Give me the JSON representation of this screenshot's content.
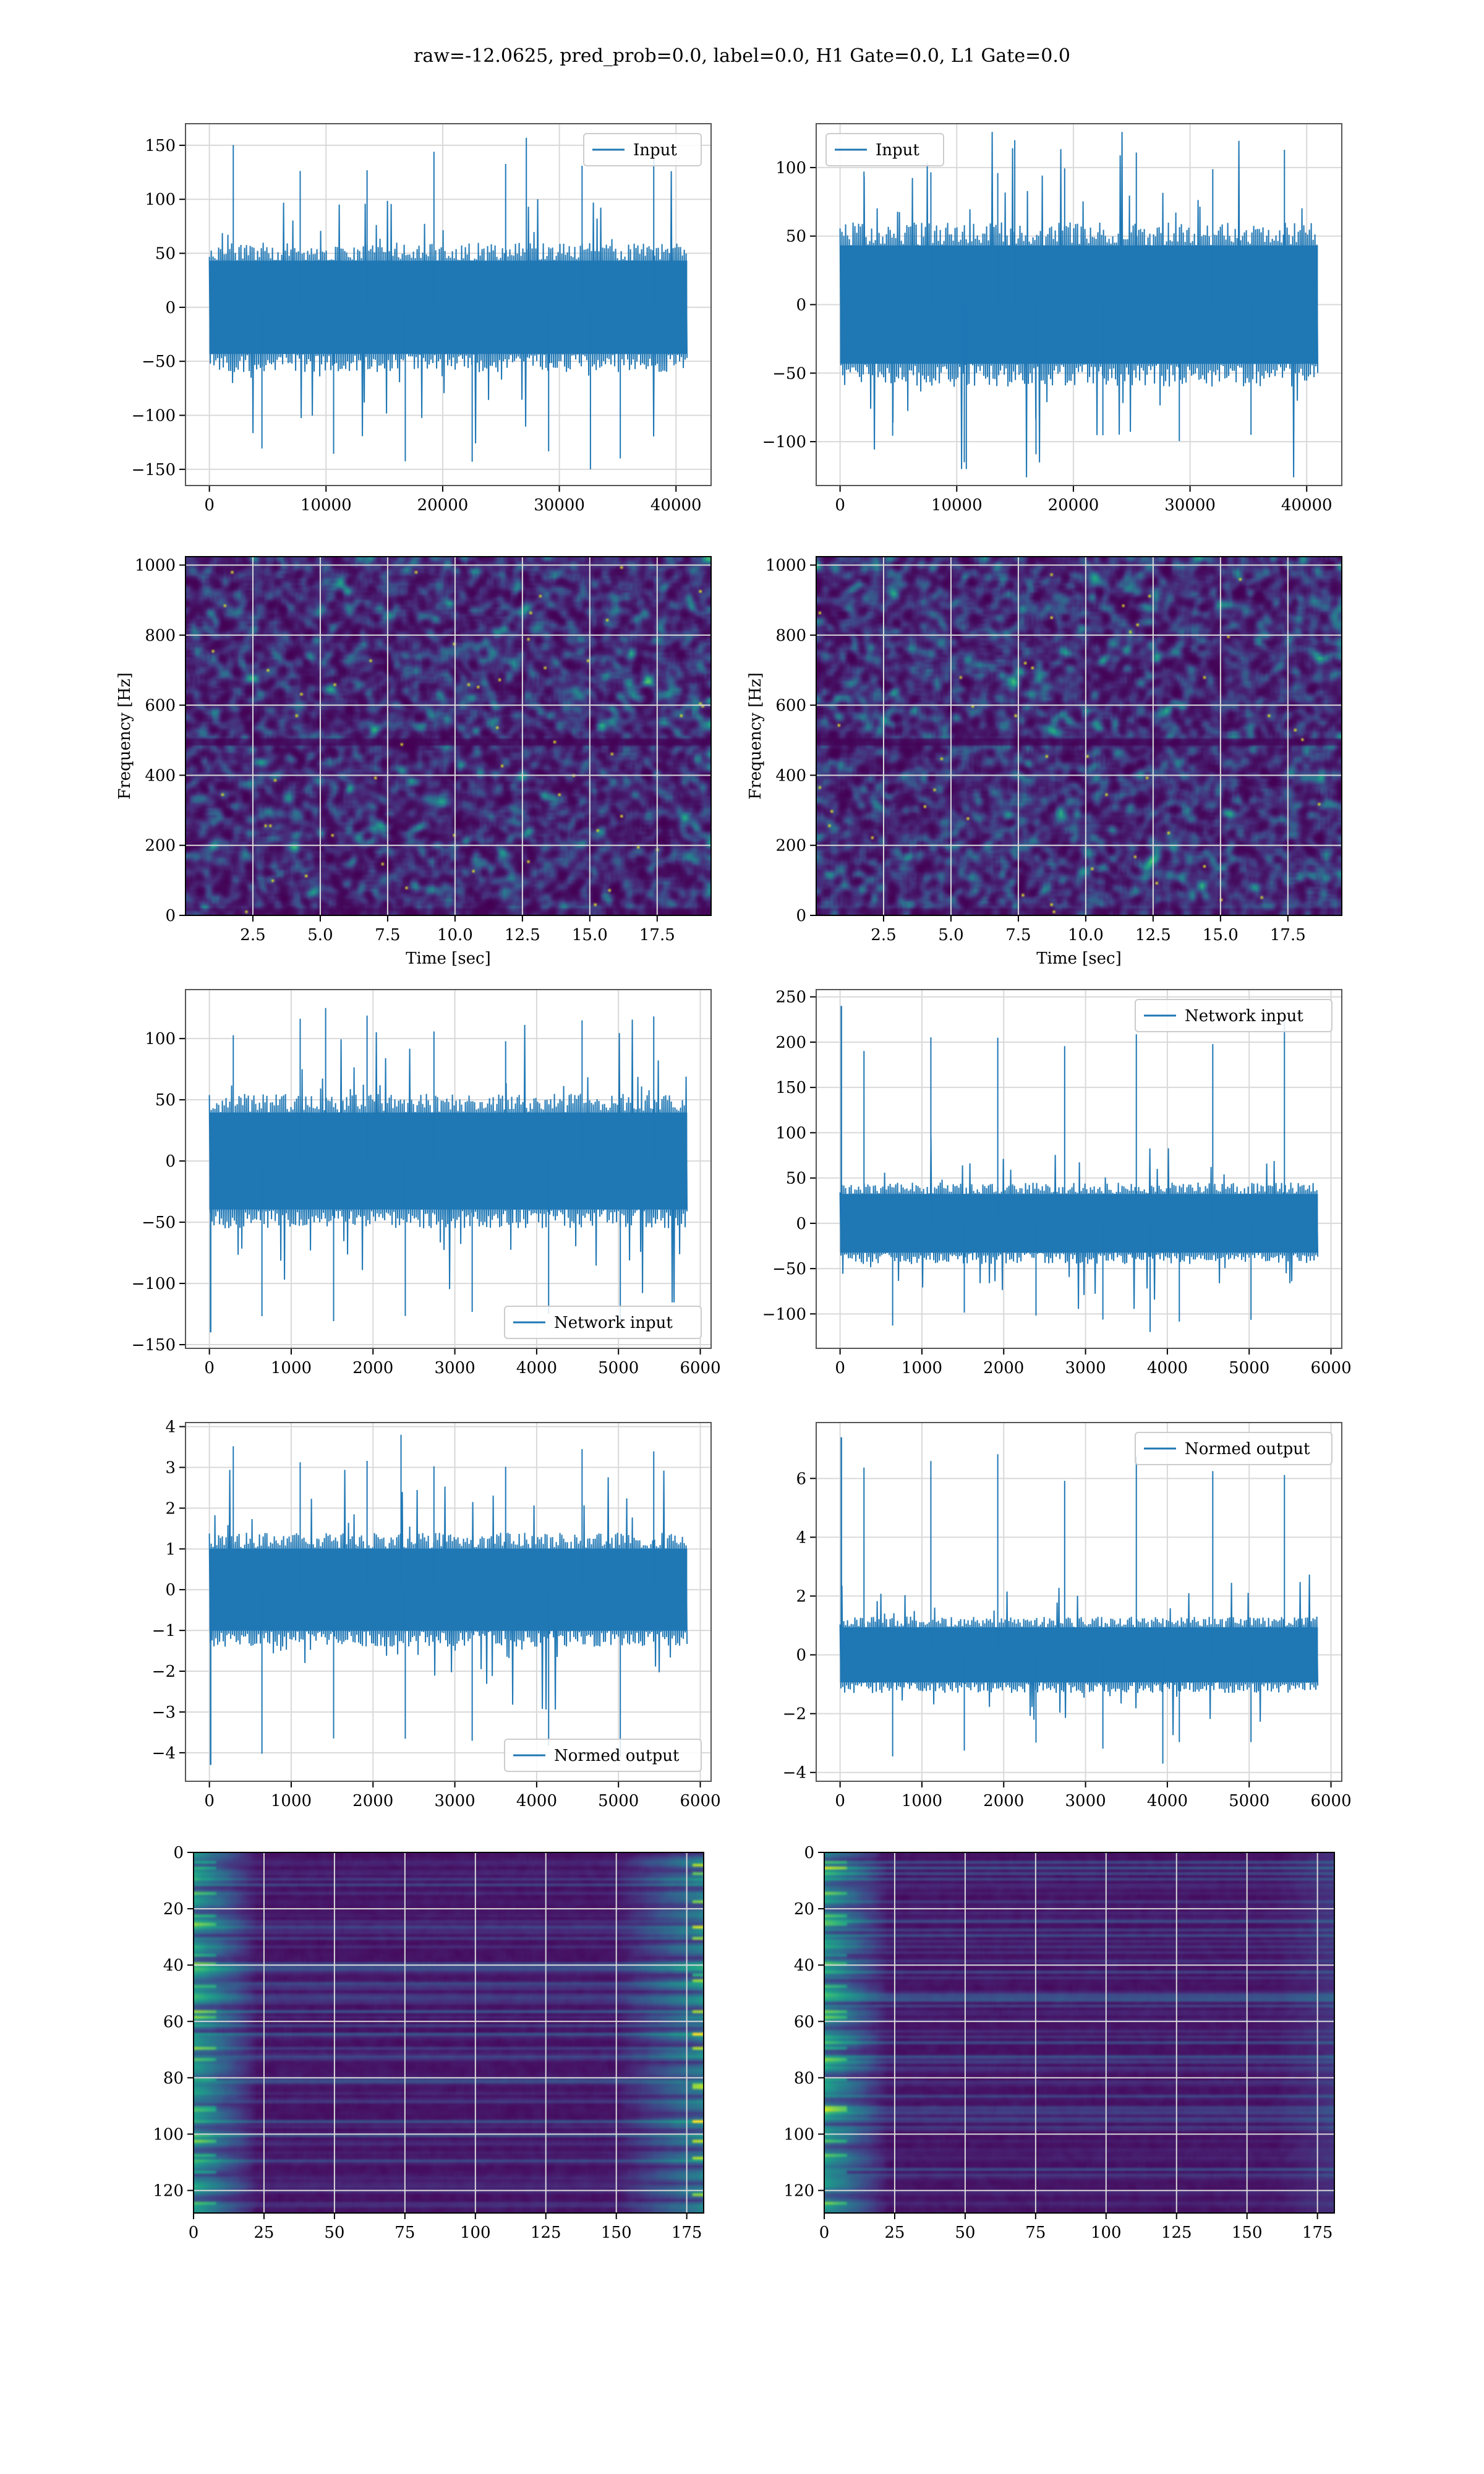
{
  "figure": {
    "title": "raw=-12.0625, pred_prob=0.0, label=0.0, H1 Gate=0.0, L1 Gate=0.0"
  },
  "colors": {
    "line": "#1f77b4",
    "grid": "#d9d9d9",
    "viridis_dark": "#440154",
    "viridis_mid": "#21918c",
    "viridis_bright": "#fde725"
  },
  "chart_data": [
    {
      "id": "input-h1",
      "type": "line",
      "series": [
        {
          "name": "Input"
        }
      ],
      "legend": "top-right",
      "x_range": [
        0,
        40960
      ],
      "y_envelope": [
        -60,
        60
      ],
      "y_extremes": [
        -150,
        157
      ],
      "xlim": [
        -2048,
        43008
      ],
      "ylim": [
        -165,
        170
      ],
      "xticks": [
        0,
        10000,
        20000,
        30000,
        40000
      ],
      "yticks": [
        -150,
        -100,
        -50,
        0,
        50,
        100,
        150
      ],
      "grid": true
    },
    {
      "id": "input-l1",
      "type": "line",
      "series": [
        {
          "name": "Input"
        }
      ],
      "legend": "top-left",
      "x_range": [
        0,
        40960
      ],
      "y_envelope": [
        -60,
        60
      ],
      "y_extremes": [
        -120,
        120
      ],
      "xlim": [
        -2048,
        43008
      ],
      "ylim": [
        -132,
        132
      ],
      "xticks": [
        0,
        10000,
        20000,
        30000,
        40000
      ],
      "yticks": [
        -100,
        -50,
        0,
        50,
        100
      ],
      "grid": true
    },
    {
      "id": "spectrogram-h1",
      "type": "heatmap",
      "xlabel": "Time [sec]",
      "ylabel": "Frequency [Hz]",
      "xlim": [
        0,
        19.5
      ],
      "ylim": [
        0,
        1024
      ],
      "xticks": [
        2.5,
        5.0,
        7.5,
        10.0,
        12.5,
        15.0,
        17.5
      ],
      "yticks": [
        0,
        200,
        400,
        600,
        800,
        1000
      ],
      "grid": true
    },
    {
      "id": "spectrogram-l1",
      "type": "heatmap",
      "xlabel": "Time [sec]",
      "ylabel": "Frequency [Hz]",
      "xlim": [
        0,
        19.5
      ],
      "ylim": [
        0,
        1024
      ],
      "xticks": [
        2.5,
        5.0,
        7.5,
        10.0,
        12.5,
        15.0,
        17.5
      ],
      "yticks": [
        0,
        200,
        400,
        600,
        800,
        1000
      ],
      "grid": true
    },
    {
      "id": "network-input-h1",
      "type": "line",
      "series": [
        {
          "name": "Network input"
        }
      ],
      "legend": "bottom-right",
      "x_range": [
        0,
        5840
      ],
      "y_envelope": [
        -55,
        55
      ],
      "y_extremes": [
        -140,
        125
      ],
      "xlim": [
        -292,
        6132
      ],
      "ylim": [
        -153,
        140
      ],
      "xticks": [
        0,
        1000,
        2000,
        3000,
        4000,
        5000,
        6000
      ],
      "yticks": [
        -150,
        -100,
        -50,
        0,
        50,
        100
      ],
      "grid": true
    },
    {
      "id": "network-input-l1",
      "type": "line",
      "series": [
        {
          "name": "Network input"
        }
      ],
      "legend": "top-right",
      "x_range": [
        0,
        5840
      ],
      "y_envelope": [
        -45,
        45
      ],
      "y_extremes": [
        -120,
        240
      ],
      "xlim": [
        -292,
        6132
      ],
      "ylim": [
        -138,
        258
      ],
      "xticks": [
        0,
        1000,
        2000,
        3000,
        4000,
        5000,
        6000
      ],
      "yticks": [
        -100,
        -50,
        0,
        50,
        100,
        150,
        200,
        250
      ],
      "grid": true
    },
    {
      "id": "normed-output-h1",
      "type": "line",
      "series": [
        {
          "name": "Normed output"
        }
      ],
      "legend": "bottom-right",
      "x_range": [
        0,
        5840
      ],
      "y_envelope": [
        -1.4,
        1.4
      ],
      "y_extremes": [
        -4.3,
        3.8
      ],
      "xlim": [
        -292,
        6132
      ],
      "ylim": [
        -4.7,
        4.1
      ],
      "xticks": [
        0,
        1000,
        2000,
        3000,
        4000,
        5000,
        6000
      ],
      "yticks": [
        -4,
        -3,
        -2,
        -1,
        0,
        1,
        2,
        3,
        4
      ],
      "grid": true
    },
    {
      "id": "normed-output-l1",
      "type": "line",
      "series": [
        {
          "name": "Normed output"
        }
      ],
      "legend": "top-right",
      "x_range": [
        0,
        5840
      ],
      "y_envelope": [
        -1.3,
        1.3
      ],
      "y_extremes": [
        -3.7,
        7.4
      ],
      "xlim": [
        -292,
        6132
      ],
      "ylim": [
        -4.3,
        7.9
      ],
      "xticks": [
        0,
        1000,
        2000,
        3000,
        4000,
        5000,
        6000
      ],
      "yticks": [
        -4,
        -2,
        0,
        2,
        4,
        6
      ],
      "grid": true
    },
    {
      "id": "features-h1",
      "type": "heatmap",
      "xlim": [
        0,
        181
      ],
      "ylim": [
        128,
        0
      ],
      "xticks": [
        0,
        25,
        50,
        75,
        100,
        125,
        150,
        175
      ],
      "yticks": [
        0,
        20,
        40,
        60,
        80,
        100,
        120
      ],
      "grid": true
    },
    {
      "id": "features-l1",
      "type": "heatmap",
      "xlim": [
        0,
        181
      ],
      "ylim": [
        128,
        0
      ],
      "xticks": [
        0,
        25,
        50,
        75,
        100,
        125,
        150,
        175
      ],
      "yticks": [
        0,
        20,
        40,
        60,
        80,
        100,
        120
      ],
      "grid": true
    }
  ]
}
